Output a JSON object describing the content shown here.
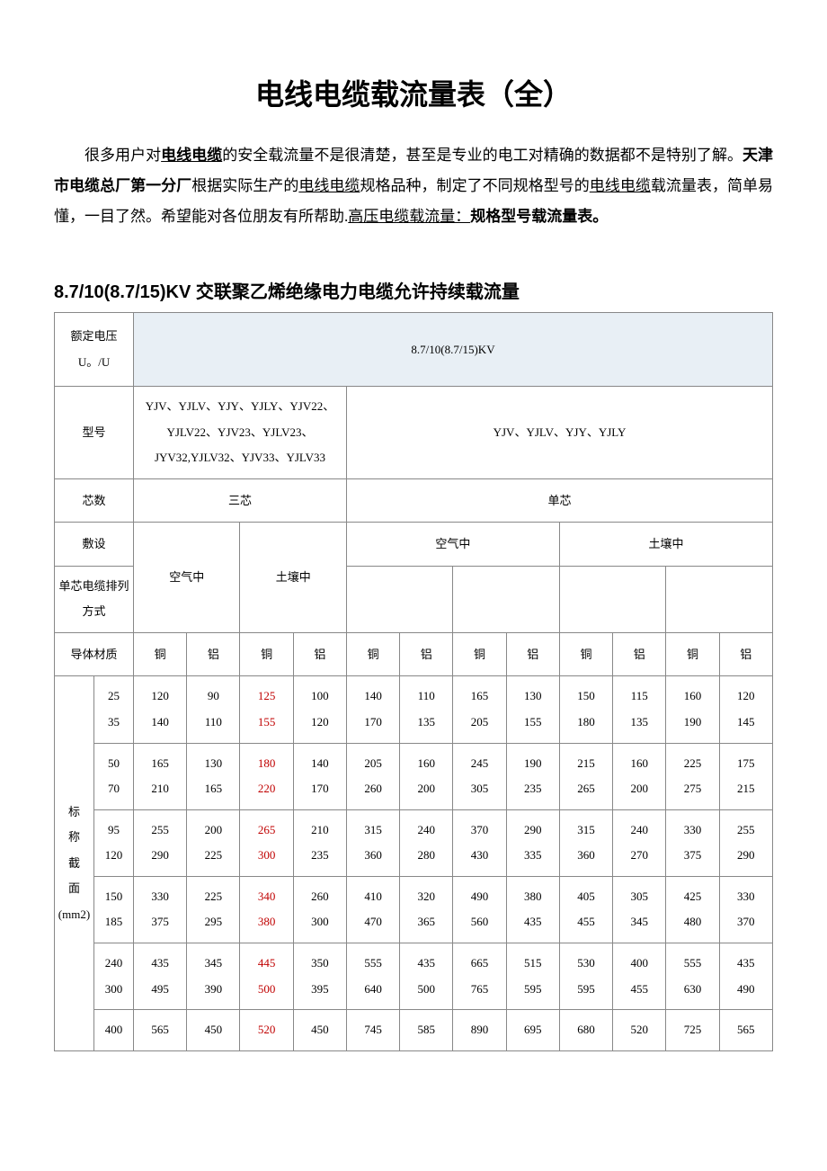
{
  "title": "电线电缆载流量表（全）",
  "intro": {
    "prefix": "很多用户对",
    "link1": "电线电缆",
    "mid1": "的安全载流量不是很清楚，甚至是专业的电工对精确的数据都不是特别了解。",
    "bold1": "天津市电缆总厂第一分厂",
    "mid2": "根据实际生产的",
    "link2": "电线电缆",
    "mid3": "规格品种，制定了不同规格型号的",
    "link3": "电线电缆",
    "mid4": "载流量表，简单易懂，一目了然。希望能对各位朋友有所帮助.",
    "link4": "高压电缆载流量：",
    "bold2": "规格型号载流量表。"
  },
  "section_heading": "8.7/10(8.7/15)KV 交联聚乙烯绝缘电力电缆允许持续载流量",
  "header": {
    "rated_voltage_label": "额定电压 U。/U",
    "rated_voltage_value": "8.7/10(8.7/15)KV",
    "model_label": "型号",
    "model_list_a": "YJV、YJLV、YJY、YJLY、YJV22、YJLV22、YJV23、YJLV23、JYV32,YJLV32、YJV33、YJLV33",
    "model_list_b": "YJV、YJLV、YJY、YJLY",
    "cores_label": "芯数",
    "cores_three": "三芯",
    "cores_single": "单芯",
    "laying_label": "敷设",
    "laying_air": "空气中",
    "laying_soil": "土壤中",
    "single_arrange_label": "单芯电缆排列方式",
    "material_label": "导体材质",
    "copper": "铜",
    "aluminum": "铝",
    "section_label_line1": "标",
    "section_label_line2": "称",
    "section_label_line3": "截",
    "section_label_line4": "面",
    "section_label_line5": "(mm2)"
  },
  "red_column_index": 2,
  "groups": [
    {
      "sizes": [
        25,
        35
      ],
      "rows": [
        [
          120,
          90,
          125,
          100,
          140,
          110,
          165,
          130,
          150,
          115,
          160,
          120
        ],
        [
          140,
          110,
          155,
          120,
          170,
          135,
          205,
          155,
          180,
          135,
          190,
          145
        ]
      ]
    },
    {
      "sizes": [
        50,
        70
      ],
      "rows": [
        [
          165,
          130,
          180,
          140,
          205,
          160,
          245,
          190,
          215,
          160,
          225,
          175
        ],
        [
          210,
          165,
          220,
          170,
          260,
          200,
          305,
          235,
          265,
          200,
          275,
          215
        ]
      ]
    },
    {
      "sizes": [
        95,
        120
      ],
      "rows": [
        [
          255,
          200,
          265,
          210,
          315,
          240,
          370,
          290,
          315,
          240,
          330,
          255
        ],
        [
          290,
          225,
          300,
          235,
          360,
          280,
          430,
          335,
          360,
          270,
          375,
          290
        ]
      ]
    },
    {
      "sizes": [
        150,
        185
      ],
      "rows": [
        [
          330,
          225,
          340,
          260,
          410,
          320,
          490,
          380,
          405,
          305,
          425,
          330
        ],
        [
          375,
          295,
          380,
          300,
          470,
          365,
          560,
          435,
          455,
          345,
          480,
          370
        ]
      ]
    },
    {
      "sizes": [
        240,
        300
      ],
      "rows": [
        [
          435,
          345,
          445,
          350,
          555,
          435,
          665,
          515,
          530,
          400,
          555,
          435
        ],
        [
          495,
          390,
          500,
          395,
          640,
          500,
          765,
          595,
          595,
          455,
          630,
          490
        ]
      ]
    },
    {
      "sizes": [
        400
      ],
      "rows": [
        [
          565,
          450,
          520,
          450,
          745,
          585,
          890,
          695,
          680,
          520,
          725,
          565
        ]
      ]
    }
  ]
}
